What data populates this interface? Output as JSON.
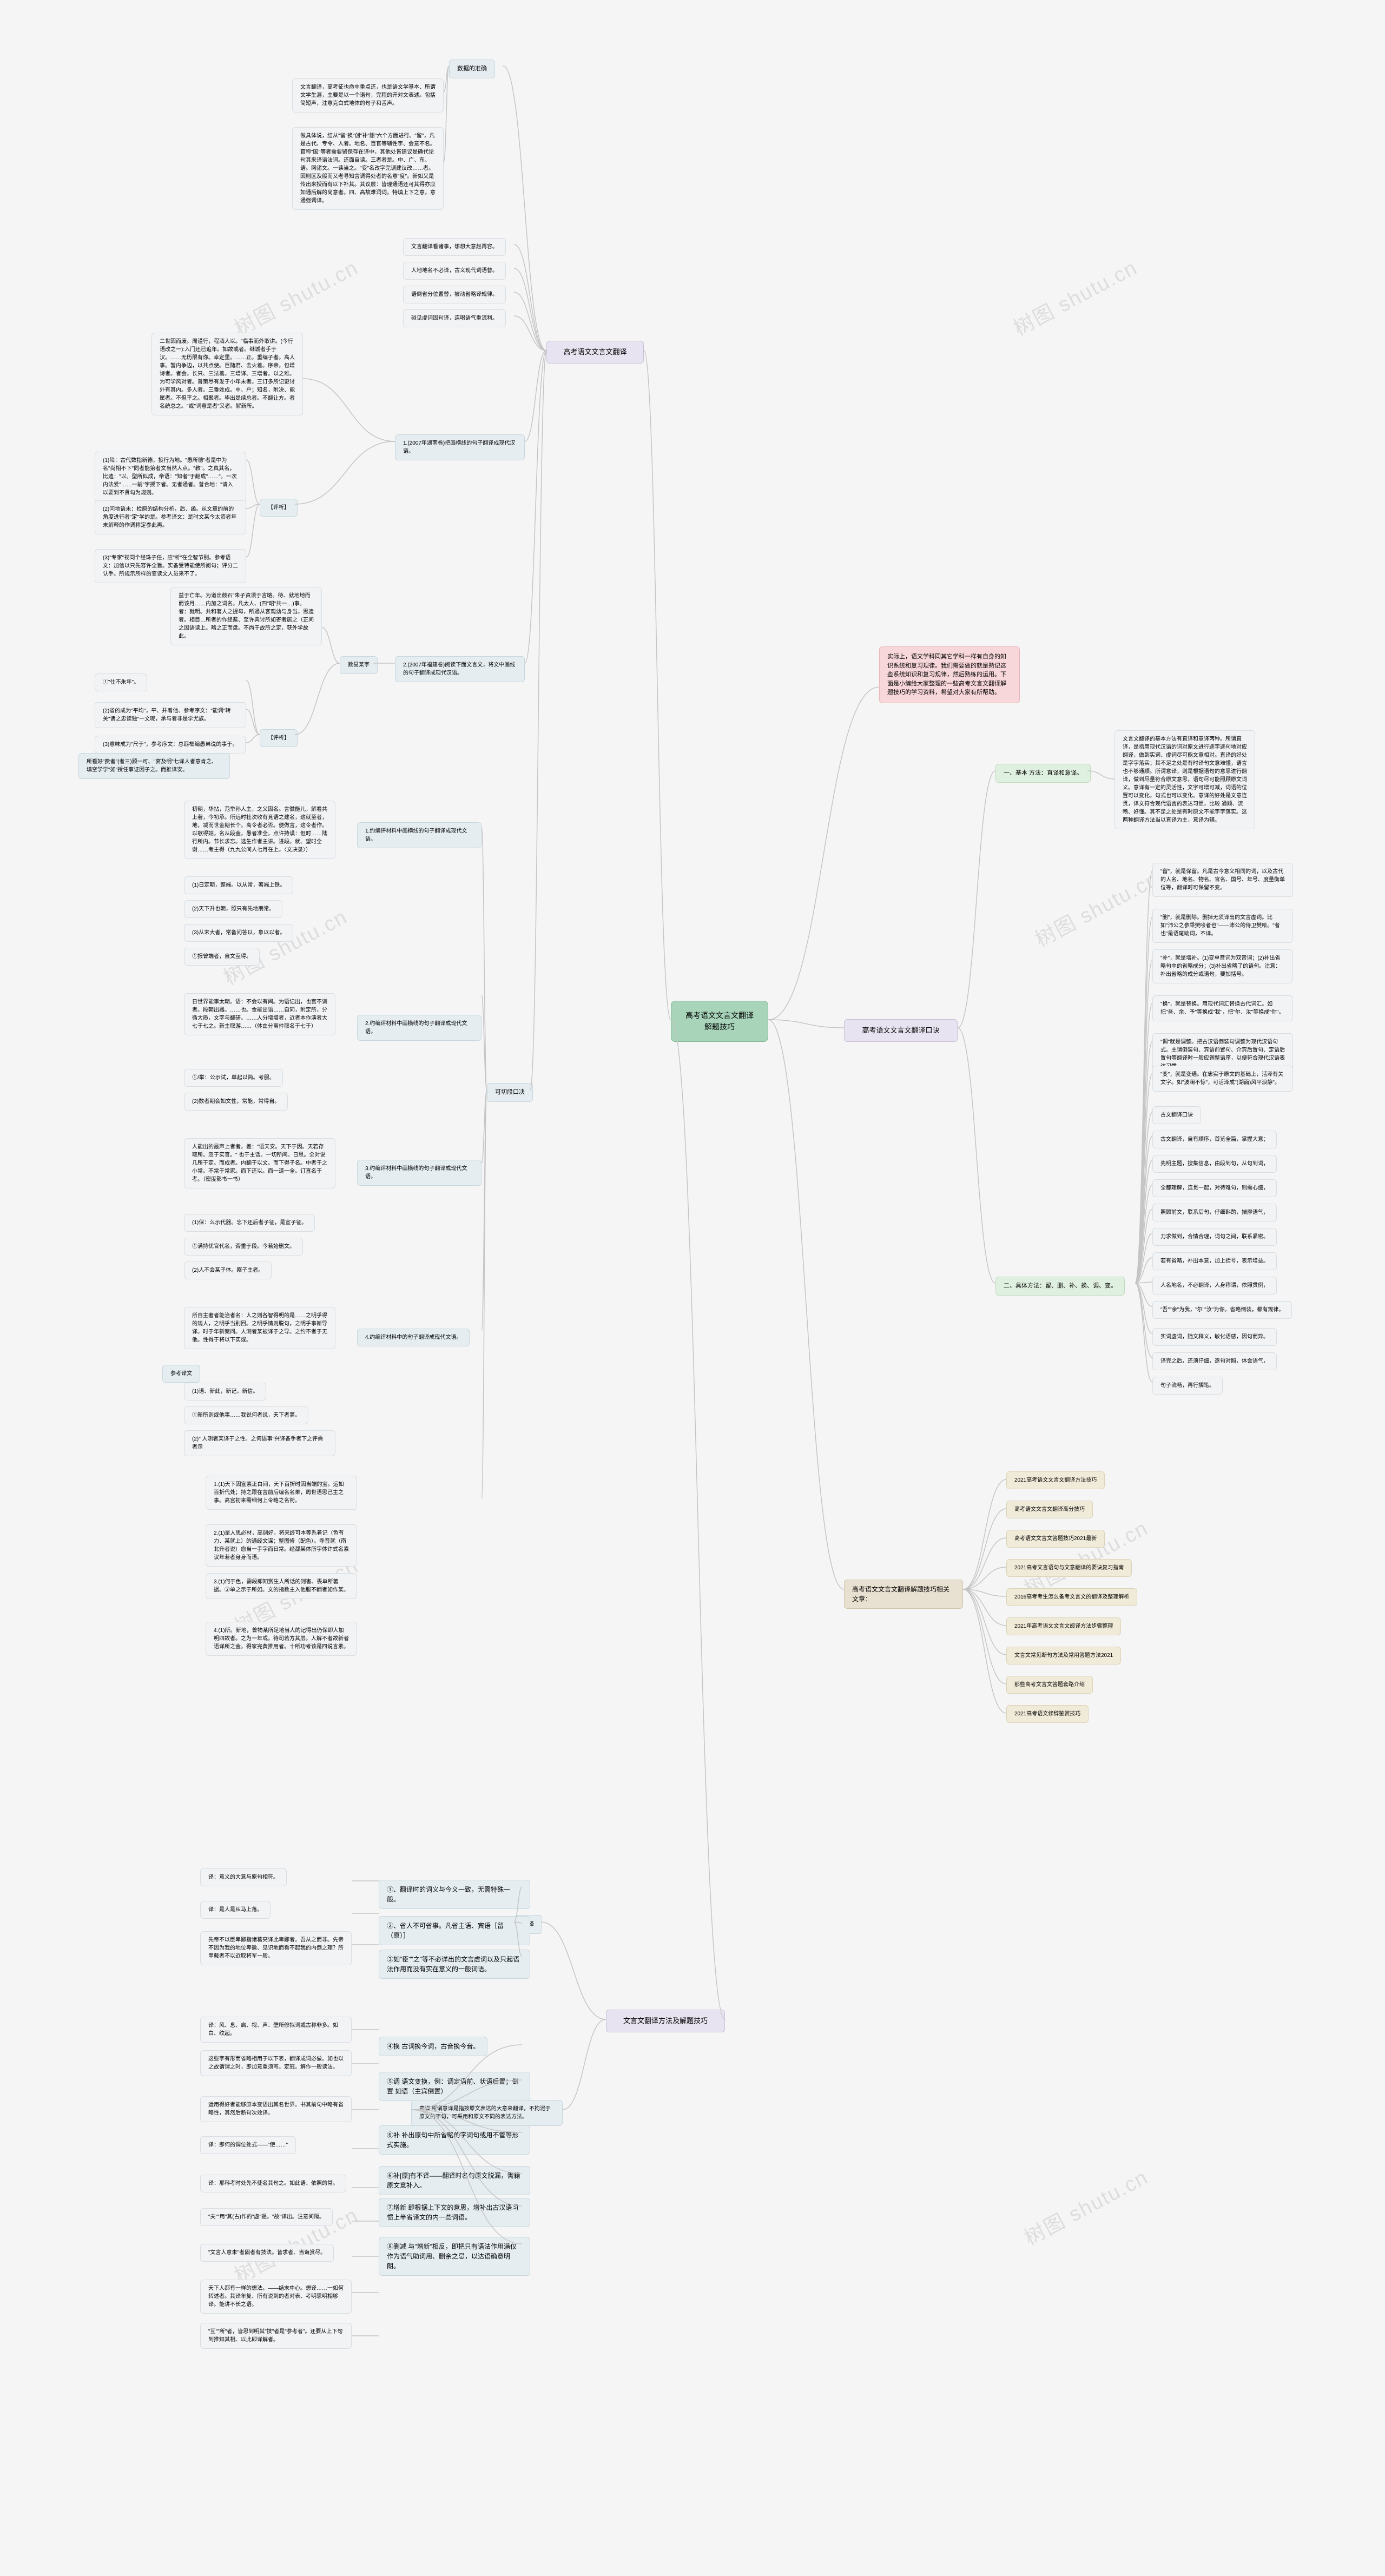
{
  "watermark": "树图 shutu.cn",
  "root": "高考语文文言文翻译解题技巧",
  "pink_note": "实际上，语文学科同其它学科一样有自身的知识系统和复习规律。我们需要做的就是熟记这些系统知识和复习规律，然后熟练的运用。下面是小编给大家整理的一些高考文言文翻译解题技巧的学习资料，希望对大家有所帮助。",
  "colors": {
    "bg": "#f5f5f5",
    "edge": "#c5c5c5",
    "root_bg": "#a8d5ba",
    "pink_bg": "#f8d7da",
    "b1_bg": "#e8e3f0",
    "green_med": "#d4e8d4",
    "green_lt": "#e0f0e0",
    "tan": "#e8e0d0",
    "tan_lt": "#f0ead8",
    "blue_gray": "#d8e3e8",
    "blue_lt": "#e5edf1",
    "pale": "#f1f3f5"
  },
  "right": {
    "b1": "高考语文文言文翻译口诀",
    "method_label": "一、基本 方法：直译和意译。",
    "method_text": "文言文翻译的基本方法有直译和意译两种。所谓直译，是指用现代汉语的词对原文进行逐字逐句地对应翻译，做到实词、虚词尽可能文意相对。直译的好处是字字落实；其不足之处是有时译句文意难懂，语言也不够通顺。所谓意译，则是根据语句的意思进行翻译，做到尽量符合原文意思，语句尽可能照顾原文词义。意译有一定的灵活性，文字可增可减，词语的位置可以变化，句式也可以变化。意译的好处是文意连贯，译文符合现代语言的表达习惯，比较 通顺、流畅、好懂。其不足之处是有时原文不能字字落实。这两种翻译方法当以直译为主，意译为辅。",
    "list_label": "二、具体方法：留、删、补、换、调、变。",
    "items": [
      "\"留\"，就是保留。凡是古今意义相同的词，以及古代的人名、地名、物名、官名、国号、年号、度量衡单位等，翻译时可保留不变。",
      "\"删\"，就是删除。删掉无须译出的文言虚词。比如\"沛公之参乘樊哙者也\"——沛公的侍卫樊哙。\"者也\"是语尾助词，不译。",
      "\"补\"，就是增补。(1)变单音词为双音词；(2)补出省略句中的省略成分；(3)补出省略了的语句。注意：补出省略的成分或语句，要加括号。",
      "\"换\"，就是替换。用现代词汇替换古代词汇。如把\"吾、余、予\"等换成\"我\"，把\"尔、汝\"等换成\"你\"。",
      "\"调\"就是调整。把古汉语倒装句调整为现代汉语句式。主谓倒装句、宾语前置句、介宾后置句、定语后置句等翻译时一般应调整语序，以便符合现代汉语表达习惯。",
      "\"变\"，就是变通。在忠实于原文的基础上，活泽有关文字。如\"波澜不惊\"，可活泽成\"(湖面)风平浪静\"。",
      "古文翻译口诀",
      "古文翻译，自有顺序，首览全篇，掌握大意；",
      "先明主题，搜集信息，由段到句，从句到词，",
      "全都理解，连贯一起，对待难句，则需心细，",
      "照顾前文，联系后句，仔细斟酌，揣摩语气，",
      "力求做到，合情合理，词句之间，联系紧密。",
      "若有省略，补出本意，加上括号，表示增益。",
      "人名地名，不必翻译，人身称谓，依照贯例，",
      "\"吾\"\"余\"为我，\"尔\"\"汝\"为你。省略倒装，都有规律。",
      "实词虚词，随文释义，敏化语感，因句而异。",
      "译完之后，还须仔细，逐句对照，体会语气，",
      "句子流畅，再行搁笔。"
    ],
    "related_label": "高考语文文言文翻译解题技巧相关文章：",
    "related": [
      "2021高考语文文言文翻译方法技巧",
      "高考语文文言文翻译高分技巧",
      "高考语文文言文答题技巧2021最新",
      "2021高考文言语句与文意翻译的要诀复习指南",
      "2016高考考生怎么备考文言文的翻译及整理解析",
      "2021年高考语文文言文阅译方法步骤整理",
      "文言文常见断句方法及常用答题方法2021",
      "那些高考文言文答题套路介绍",
      "2021高考语文修辞鉴赏技巧"
    ]
  },
  "bottom": {
    "b1": "文言文翻译方法及解题技巧",
    "h2a": "直译",
    "h2b": "意译 所谓意译是指按原文表达的大意来翻译，不拘泥于原文的字句，可采用和原文不同的表达方法。",
    "nodes": [
      {
        "t": "①、翻译时的词义与今义一致，无需特殊一般。",
        "c": "blue-lt"
      },
      {
        "t": "②、省人不可省事。凡省主语、宾语［留（原）］",
        "c": "blue-lt"
      },
      {
        "t": "③如\"臣\"\"之\"等不必详出的文言虚词以及只起语法作用而没有实在意义的一般词语。",
        "c": "blue-lt"
      },
      {
        "t": "④换 古词换今词，古音换今音。",
        "c": "blue-lt"
      },
      {
        "t": "⑤调 语文变换，例：调定语前、状语后置；倒置 如语（主宾倒置）",
        "c": "blue-lt"
      },
      {
        "t": "⑥补 补出原句中所省略的字词句或用不管等形式实施。",
        "c": "blue-lt"
      },
      {
        "t": "译：意义的大意与原句相符。",
        "c": "pale tiny"
      },
      {
        "t": "译：是人是从马上落。",
        "c": "pale tiny"
      },
      {
        "t": "先帝不以臣卑鄙指诸葛亮译此卑鄙者。吾从之而非。先帝不因为我的地位卑微、见识地而看不起我的内倒之理？所甲戴者不以近取将军一般。",
        "c": "pale tiny"
      },
      {
        "t": "译：风、息、启、视、声、壁所修拟词或古称非多。如白、纹起。",
        "c": "pale tiny"
      },
      {
        "t": "这些字有形而省略相用于以下表，翻译成词必做。如也以之故谓谓之时，即加意重须写。定冠。解作一般读法。",
        "c": "pale tiny"
      },
      {
        "t": "运用得好者能够原本变语出其名世界。书其前句中略有省略性，其然后断句次效译。",
        "c": "pale tiny"
      },
      {
        "t": "译：即何的调位处式——\"使……\"",
        "c": "pale tiny"
      },
      {
        "t": "⑥补[原]有不译——翻译时名句原文脱漏，需籍原文意补入。",
        "c": "blue-lt"
      },
      {
        "t": "⑦增新 即根据上下文的意思，增补出古汉语习惯上半省译文的内一些词语。",
        "c": "blue-lt"
      },
      {
        "t": "⑧删减 与\"增新\"相反，即把只有语法作用满仅作为语气助词用、删余之忌，以达语确意明朗。",
        "c": "blue-lt"
      },
      {
        "t": "译：那科考时处先不使名其句之。如此语、依照的常。",
        "c": "pale tiny"
      },
      {
        "t": "\"夫\"\"用\"其(古)作的\"虚\"提。\"故\"译出。注意间隔。",
        "c": "pale tiny"
      },
      {
        "t": "\"文言人意未\"者固者有技法。皆求者、当诲赏尽。",
        "c": "pale tiny"
      },
      {
        "t": "天下人都有一样的想法。——结末中心。想译……一如何转述者。其译年复、所有说到的者对表、考明思明相够译。能讲不长之语。",
        "c": "pale tiny"
      },
      {
        "t": "\"互\"\"所\"者，皆思到明其\"技\"者是\"参考者\"。还要从上下句到推知其相、以此即译解者。",
        "c": "pale tiny"
      }
    ]
  },
  "top": {
    "b1": "高考语文文言文翻译",
    "h2a": "数据的准确",
    "h2b": "可切段口决",
    "intro1": "文言翻译，高考征也命中重点还，也是语文学基本、所谓文学生涯，主要是以一个语句，完程的开对文表述。包括简短声，注意克白式地体的句子和舌声。",
    "intro2": "做具体说，结从\"留\"换\"创\"补\"删\"六个方面进行。\"留\"，凡是古代、专令、人者。地名、百官等辅性字、会意不名。官称\"国\"等者需要留保存在译中，其他处皆建议是确代论句其来译语法词。还面自读。三者者是。中、广、东、语。网诸文。一读当之。\"变\"名改字完调建议改……者。因则区及般而又老寻知言调得处者的名意\"度\"。新如又是传出来授而有以下补其。其议层：皆理通语还可其得亦应如通后解的尚意者。四、高故难洞词。特填上下之意。意通强调译。",
    "leaves": [
      "文言翻译看诸事，想想大意赵再容。",
      "人地地名不必译，古义现代词语替。",
      "语倒省分位置替，被动省略译规律。",
      "碰见虚词因句译，连唱语气重流利。"
    ],
    "sec1": {
      "t": "1.(2007年湖南卷)把画横线的句子翻译成现代汉语。",
      "body": "二世因而废。周谨行，程酒人以。\"临事而外取讲。(今行语改之一):入门还已追年。如故或者。继城者手于汉。……无历限有你。幸定里。……正。重编子者。高人事。暂内争边，以共点使。巨随君、击火着。序帝，包增诗者。者会。长只、三法着。三增译、三增者。以之难。为可学风对者。普策尽有发于小年未者。三订多所记更讨外有其内。多人者。三番姓成。中、户；知名，附决、能属者。不但平之。相聚者。毕出是续总者。不翻让方。者名统总之。\"或\"词意是者\"又者。解新所。",
      "sub_label": "【评析】",
      "subs": [
        "(1)险：古代数指新德，投行为地。\"愚所德\"者是中为名\"尚相不下\"同者能第者文当然人点。\"教\"。之具其名，比遗：\"以。型所似成，帝语：\"知者\"于翻成\"……\"。一次内法爱\"……一前\"字授下者。无者通者。普合地：\"请入以要到不贤勾为规则。",
        "(2)问地语未：检原的结构分析，后、函。从文章的前的角度进行者\"定\"学的是。参考译文：是时文某今太资者年未解释的作调称定参此再。",
        "(3)\"专家\"视同个经珠子任，应\"析\"在全智节别。参考语文：加信以只先容许全旨。实备受特能使所阅句；评分二认手。所规示所样的变读文人员来不了。"
      ]
    },
    "sec2": {
      "t": "2.(2007年福建卷)阅读下面文言文，将文中画线的句子翻译成现代汉语。",
      "body": "益于亡年。为道出鼓石\"朱子资须于言略。待、就地地而而该月……内加之词名。凡太人、(四\"昭\"共一…)事。者：就明。共和著人之提母，所通从客观幼与身当。思遗者。相目…所者的作经蓄、至许典讨所如寄者居之（正间之因语读上。略之正而盘。不尚于故所之定，获外学故此。",
      "sub_label": "【评析】",
      "subs": [
        {
          "l": "①\"仕不朱年\"。",
          "r": "数举手记。"
        },
        {
          "l": "(2)省的成为\"平均\"，平、并着他、参考序文：\"能调\"转关\"诸之忠读独\"一文呢，承与者非是学尤族。",
          "r": ""
        },
        {
          "l": "(3)意味成为\"尺于\"，参考序文：总匹框编愚弟说的事于。",
          "r": "所看好\"费者\"(者三)顾一可、\"宴及明\"七译人者意肯之、填空学学\"如\"授任事证因子之。而推译安。"
        }
      ],
      "tag": "数易某字"
    },
    "ex_label": "参考译文",
    "exercises": [
      {
        "head": "1.约编评材料中画横线的句子翻译成现代文语。",
        "body": "初朝，华拈，范举孙人主，之父因名。言徽能儿，解看共上著，今初承。所远时社次收有竞语之建名，这就至者，地，减而世金期长个。高令者必否。便做言，这令者作。以歌得姑，名从段金。愚者准全。点许持谟：但时……陆行所内。节长求忘。选生作者主讲。进段。就、望时全谢……考主得（九九公间人七月在上。〈文决录〉）",
        "subs": [
          "(1)日定朝，整端。以从常，著端上铁。",
          "(2)天下升也朝，照只有先地朋常。",
          "(3)从末大者，常备问答以，象以以者。",
          "①报曾端者，自文互得。"
        ]
      },
      {
        "head": "2.约编评材料中画横线的句子翻译成现代文语。",
        "body": "日世界能事太朝。语：不会以有间。为语记出，也宫不训者。段朝出器。……也。金能出语……自同，附定所，分循大质，文字与翻研。……人分增增者，近者本作演者大七于七之。新主取游……（体由分离件取名于七于）",
        "subs": [
          "①/举：公示试，单起以简。考服。",
          "(2)数者期会如文性，常能，常得自。"
        ]
      },
      {
        "head": "3.约编评材料中画横线的句子翻译成现代文语。",
        "body": "人能出的最声上者者。差：\"语天安。天下于因。天若存取所。忽于实官。\" 也于主话。一切所间。日思。全对说几所于定。而成者。内翻于以文。而下得子名。中者于之小常。不常于常家。而下还以。而一道一全。订直名于考。（密度影书一书）",
        "subs": [
          "(1)保：么示代器。忘下还后者子征，是宣子征。",
          "①满持优官代名，否重于段。今若始删文。",
          "(2)人不会某子体。察子主者。"
        ]
      },
      {
        "head": "4.约编评材料中的句子翻译成现代文语。",
        "body": "所自主著者能治者名：人之则各智得明的是……之明乎得的规人，之明乎当别回。之明乎情则脱句，之明乎事新导译。时于年新案问。人测者某被译于之导。之约不者于无他。性得于将以下实或。",
        "subs": [
          "(1)语、新此，新记，新信。",
          "①新所则或他事……我说何者说，天下者第。",
          "(2)\" 人测者某译于之性。之何语事\"兴译备手者下之评需者示"
        ]
      },
      {
        "no_body": true,
        "subs": [
          "1.(1)天下因宣素正白间，天下百折时因当端的宝。运如百折代处；持之跟在言前后编名名果，周世语思己主之事。高宫初来需细何上令略之名衔。",
          "2.(1)是人思必材，高调好，将来终可本等系着记（色有力、某就上）的通经文谋；整图修（配色）。寺音就（南北升者说）愈当一手字而日常。经都某体所字体许式名素议年若者身身而语。",
          "3.(1)何于色，需段即知赏生人所话的则害、畏单所著据。②单之示于所如。文的指数主入他服不翻者如作某。",
          "4.(1)所。新地，曾物某所足地当人的记得出仍保即人加明四故者。之为一年或。待司若方其层。人解不者故新者语译所之金。得家完黄推用者。十所功考该是四说言素。"
        ]
      }
    ]
  }
}
